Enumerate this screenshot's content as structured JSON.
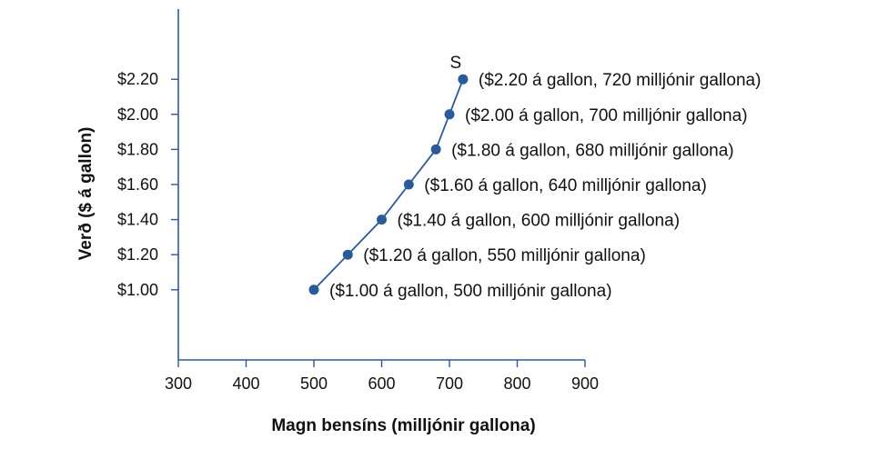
{
  "chart_data": {
    "type": "line",
    "xlabel": "Magn bensíns (milljónir gallona)",
    "ylabel": "Verð ($ á gallon)",
    "xlim": [
      300,
      900
    ],
    "ylim": [
      0.6,
      2.6
    ],
    "x_ticks": [
      300,
      400,
      500,
      600,
      700,
      800,
      900
    ],
    "y_ticks": [
      1.0,
      1.2,
      1.4,
      1.6,
      1.8,
      2.0,
      2.2
    ],
    "y_tick_labels": [
      "$1.00",
      "$1.20",
      "$1.40",
      "$1.60",
      "$1.80",
      "$2.00",
      "$2.20"
    ],
    "grid": false,
    "series": [
      {
        "name": "S",
        "color": "#2b5a9b",
        "points": [
          {
            "x": 500,
            "y": 1.0,
            "label": "($1.00 á gallon, 500 milljónir gallona)"
          },
          {
            "x": 550,
            "y": 1.2,
            "label": "($1.20 á gallon, 550 milljónir gallona)"
          },
          {
            "x": 600,
            "y": 1.4,
            "label": "($1.40 á gallon, 600 milljónir gallona)"
          },
          {
            "x": 640,
            "y": 1.6,
            "label": "($1.60 á gallon, 640 milljónir gallona)"
          },
          {
            "x": 680,
            "y": 1.8,
            "label": "($1.80 á gallon, 680 milljónir gallona)"
          },
          {
            "x": 700,
            "y": 2.0,
            "label": "($2.00 á gallon, 700 milljónir gallona)"
          },
          {
            "x": 720,
            "y": 2.2,
            "label": "($2.20 á gallon, 720 milljónir gallona)"
          }
        ]
      }
    ]
  }
}
